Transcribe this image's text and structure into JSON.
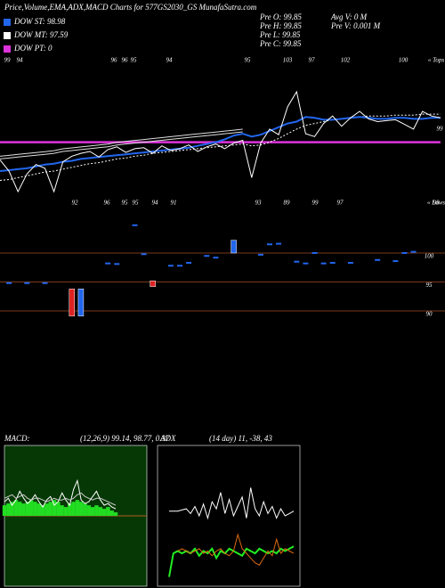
{
  "header": {
    "title": "Price,Volume,EMA,ADX,MACD Charts for 577GS2030_GS MunafaSutra.com",
    "stats": [
      "Pre  O: 99.85",
      "Pre  H: 99.85",
      "Pre  L: 99.85",
      "Pre  C: 99.85"
    ],
    "volume_stats": [
      "Avg V: 0  M",
      "Pre  V: 0.001 M"
    ]
  },
  "chart_data": [
    {
      "type": "line",
      "ylim": [
        90.4,
        107.1
      ],
      "yticks": [
        99
      ],
      "top_labels": [
        "99",
        "94",
        "96",
        "96",
        "95",
        "94",
        "95",
        "103",
        "97",
        "102",
        "100",
        "« Tops"
      ],
      "bottom_labels": [
        "92",
        "96",
        "95",
        "95",
        "94",
        "91",
        "93",
        "89",
        "99",
        "97",
        "98",
        "« Lows"
      ],
      "series": [
        {
          "color": "#ffffff",
          "values": [
            95.7,
            94.5,
            92.3,
            94.2,
            95.2,
            94.8,
            92.3,
            95.5,
            96.1,
            96.4,
            96.6,
            96.0,
            96.8,
            97.1,
            96.5,
            96.9,
            97.0,
            96.4,
            97.2,
            96.7,
            96.9,
            97.3,
            96.6,
            97.1,
            97.4,
            96.9,
            97.5,
            97.8,
            93.8,
            97.5,
            99.0,
            98.4,
            101.4,
            103.0,
            98.5,
            98.2,
            99.6,
            100.4,
            99.3,
            100.2,
            100.9,
            100.1,
            99.8,
            99.9,
            100.0,
            99.5,
            99.0,
            100.9,
            100.4,
            100.2
          ]
        },
        {
          "name": "DOW ST: 98.98",
          "color": "#2266ee",
          "values": [
            94.5,
            94.6,
            94.7,
            94.8,
            95.0,
            95.2,
            95.3,
            95.5,
            95.6,
            95.8,
            95.9,
            96.0,
            96.1,
            96.2,
            96.3,
            96.4,
            96.5,
            96.6,
            96.7,
            96.8,
            96.9,
            97.0,
            97.2,
            97.4,
            97.6,
            97.9,
            98.3,
            98.5,
            98.2,
            98.4,
            98.8,
            99.2,
            99.6,
            99.8,
            100.3,
            100.2,
            100.0,
            100.0,
            100.1,
            100.2,
            100.3,
            100.2,
            100.1,
            100.1,
            100.2,
            100.2,
            100.1,
            100.1,
            100.2,
            100.2
          ]
        },
        {
          "name": "DOW MT: 97.59",
          "color": "#ffffff",
          "dashed": true,
          "values": [
            93.5,
            93.6,
            93.8,
            94.0,
            94.2,
            94.4,
            94.5,
            94.7,
            94.9,
            95.1,
            95.3,
            95.4,
            95.6,
            95.8,
            95.9,
            96.1,
            96.2,
            96.4,
            96.5,
            96.6,
            96.7,
            96.8,
            96.9,
            97.0,
            97.1,
            97.2,
            97.3,
            97.4,
            97.2,
            97.3,
            97.6,
            98.0,
            98.5,
            99.0,
            99.4,
            99.6,
            99.8,
            100.0,
            100.1,
            100.2,
            100.3,
            100.4,
            100.4,
            100.4,
            100.5,
            100.5,
            100.5,
            100.6,
            100.6,
            100.6
          ]
        },
        {
          "name": "DOW PT: 0",
          "color": "#dd33dd",
          "values": [
            97.6,
            97.6,
            97.6,
            97.6,
            97.6,
            97.6,
            97.6,
            97.6,
            97.6,
            97.6,
            97.6,
            97.6,
            97.6,
            97.6,
            97.6,
            97.6,
            97.6,
            97.6,
            97.6,
            97.6,
            97.6,
            97.6,
            97.6,
            97.6,
            97.6,
            97.6,
            97.6,
            97.6,
            97.6,
            97.6,
            97.6,
            97.6,
            97.6,
            97.6,
            97.6,
            97.6,
            97.6,
            97.6,
            97.6,
            97.6,
            97.6,
            97.6,
            97.6,
            97.6,
            97.6,
            97.6,
            97.6,
            97.6,
            97.6,
            97.6
          ]
        },
        {
          "color": "#dddddd",
          "values": [
            95.8,
            95.9,
            96.0,
            96.1,
            96.2,
            96.3,
            96.4,
            96.6,
            96.7,
            96.8,
            96.9,
            97.0,
            97.1,
            97.3,
            97.4,
            97.5,
            97.6,
            97.7,
            97.8,
            97.9,
            98.0,
            98.1,
            98.2,
            98.3,
            98.4,
            98.5,
            98.6,
            98.7,
            null,
            null,
            null,
            null,
            null,
            null,
            null,
            null,
            null,
            null,
            null,
            null,
            null,
            null,
            null,
            null,
            null,
            null,
            null,
            null,
            null,
            null
          ]
        }
      ]
    },
    {
      "type": "volume",
      "ylim": [
        88.3,
        106
      ],
      "yticks": [
        100,
        95,
        90
      ],
      "grid_color": "#7a3a1a",
      "points": {
        "color": "#2266ee",
        "values": [
          null,
          94.8,
          null,
          94.8,
          null,
          94.8,
          null,
          null,
          null,
          null,
          null,
          null,
          98.2,
          98.1,
          null,
          104.8,
          99.8,
          null,
          null,
          97.8,
          97.8,
          98.3,
          null,
          99.5,
          99.2,
          null,
          null,
          null,
          null,
          99.7,
          101.5,
          101.6,
          null,
          98.5,
          98.2,
          100,
          98.2,
          98.3,
          null,
          98.3,
          null,
          null,
          98.8,
          null,
          98.6,
          100,
          100.2,
          null,
          null,
          null
        ]
      },
      "bars": {
        "x": [
          8,
          9,
          17,
          26
        ],
        "low": [
          89.1,
          89.1,
          94.2,
          100
        ],
        "high": [
          93.8,
          93.8,
          95.2,
          102.2
        ],
        "colors": [
          "#dd2222",
          "#2266ee",
          "#dd2222",
          "#2266ee"
        ]
      }
    },
    {
      "type": "macd",
      "label": "MACD:",
      "params": "(12,26,9) 99.14, 98.77, 0.37",
      "ylim": [
        -4,
        4
      ],
      "background": "#063806",
      "histogram": {
        "color": "#22dd22",
        "values": [
          0.6,
          0.7,
          0.8,
          0.9,
          0.8,
          0.7,
          0.8,
          0.9,
          0.8,
          0.7,
          0.6,
          0.7,
          0.8,
          0.9,
          0.8,
          0.6,
          0.5,
          0.7,
          0.8,
          0.9,
          0.8,
          0.7,
          0.6,
          0.5,
          0.6,
          0.5,
          0.4,
          0.5,
          0.3,
          0.2
        ]
      },
      "series": [
        {
          "color": "#ffffff",
          "values": [
            0.8,
            1.0,
            0.6,
            0.9,
            1.4,
            1.0,
            0.7,
            0.9,
            1.2,
            0.8,
            0.5,
            0.9,
            1.1,
            0.6,
            0.8,
            1.3,
            0.9,
            0.6,
            1.5,
            2.0,
            0.9,
            0.7,
            0.8,
            1.1,
            1.4,
            0.9,
            0.6,
            0.7,
            0.5,
            0.4
          ]
        },
        {
          "color": "#cccccc",
          "values": [
            1.0,
            1.1,
            1.2,
            1.0,
            1.1,
            1.2,
            1.0,
            0.9,
            1.0,
            1.0,
            0.9,
            0.8,
            0.9,
            1.0,
            0.9,
            0.9,
            1.0,
            0.9,
            1.0,
            1.2,
            1.3,
            1.1,
            1.0,
            0.9,
            1.0,
            1.0,
            0.9,
            0.8,
            0.7,
            0.6
          ]
        }
      ]
    },
    {
      "type": "adx",
      "label": "ADX",
      "params": "(14 day) 11, -38, 43",
      "ylim": [
        0,
        60
      ],
      "series": [
        {
          "color": "#ffffff",
          "values": [
            32,
            32,
            32,
            32.5,
            33,
            31,
            34,
            30,
            35,
            29,
            36,
            33,
            40,
            31,
            37,
            30,
            34,
            38,
            29,
            42,
            33,
            30,
            36,
            31,
            34,
            29,
            33,
            30,
            31,
            32
          ]
        },
        {
          "color": "#22ee22",
          "values": [
            4,
            14,
            15,
            14,
            15,
            14,
            16,
            13,
            15,
            14,
            16,
            12,
            15,
            14,
            16,
            15,
            14,
            13,
            16,
            15,
            14,
            16,
            15,
            14,
            15,
            14,
            16,
            15,
            16,
            17
          ]
        },
        {
          "color": "#dd6a10",
          "values": [
            null,
            null,
            15,
            16,
            15,
            14,
            15,
            16,
            14,
            15,
            13,
            15,
            16,
            14,
            13,
            15,
            22,
            16,
            14,
            12,
            10,
            9,
            12,
            15,
            13,
            20,
            14,
            16,
            15,
            14
          ]
        }
      ]
    }
  ]
}
